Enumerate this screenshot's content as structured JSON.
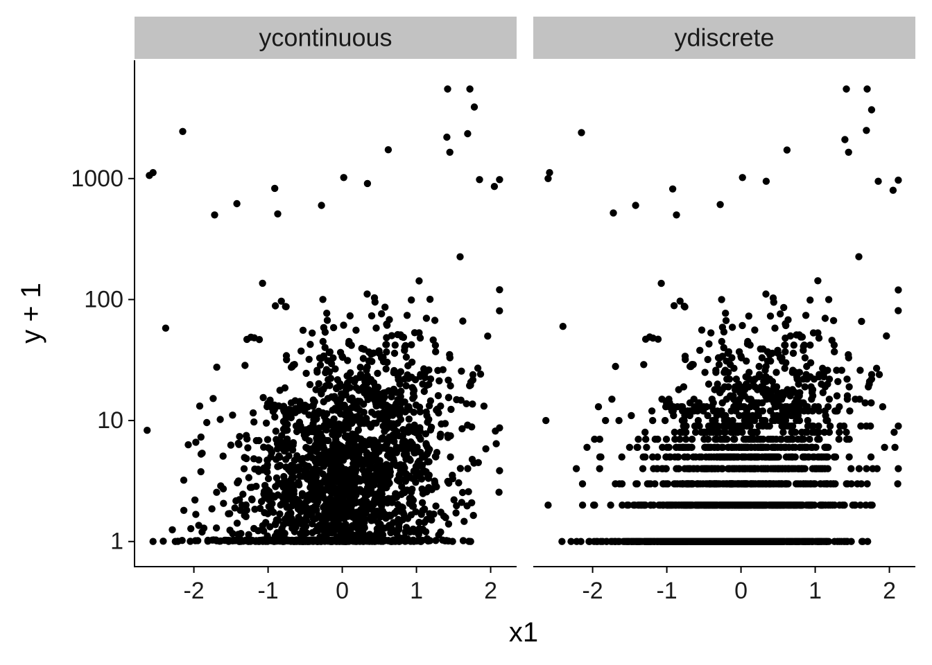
{
  "chart_data": {
    "type": "scatter",
    "facets": [
      "ycontinuous",
      "ydiscrete"
    ],
    "xlabel": "x1",
    "ylabel": "y + 1",
    "y_scale": "log10",
    "xlim": [
      -2.8,
      2.35
    ],
    "ylim": [
      0.62,
      9500
    ],
    "x_ticks": [
      -2,
      -1,
      0,
      1,
      2
    ],
    "x_tick_labels": [
      "-2",
      "-1",
      "0",
      "1",
      "2"
    ],
    "y_ticks": [
      1,
      10,
      100,
      1000
    ],
    "y_tick_labels": [
      "1",
      "10",
      "100",
      "1000"
    ],
    "grid": false,
    "point_color": "#000000",
    "strip_color": "#c2c2c2",
    "n_points_per_facet": 2200,
    "series": [
      {
        "facet": "ycontinuous",
        "notable_points": [
          [
            1.42,
            5500
          ],
          [
            1.72,
            5500
          ],
          [
            1.78,
            3900
          ],
          [
            1.41,
            2200
          ],
          [
            1.69,
            2350
          ],
          [
            -2.15,
            2450
          ],
          [
            -2.55,
            1120
          ],
          [
            -2.6,
            1060
          ],
          [
            0.62,
            1730
          ],
          [
            1.45,
            1650
          ],
          [
            0.02,
            1020
          ],
          [
            0.34,
            910
          ],
          [
            -0.91,
            830
          ],
          [
            1.85,
            980
          ],
          [
            2.05,
            860
          ],
          [
            2.12,
            980
          ],
          [
            -1.42,
            620
          ],
          [
            -0.87,
            510
          ],
          [
            -1.72,
            500
          ],
          [
            -0.28,
            600
          ],
          [
            -2.38,
            58
          ],
          [
            -2.63,
            8.3
          ],
          [
            -2.55,
            1.0
          ],
          [
            -2.25,
            1.0
          ],
          [
            1.73,
            1.0
          ]
        ]
      },
      {
        "facet": "ydiscrete",
        "notable_points": [
          [
            1.42,
            5500
          ],
          [
            1.7,
            5500
          ],
          [
            1.76,
            3700
          ],
          [
            1.69,
            2500
          ],
          [
            1.4,
            2100
          ],
          [
            -2.15,
            2400
          ],
          [
            -2.58,
            1120
          ],
          [
            -2.6,
            1000
          ],
          [
            0.62,
            1720
          ],
          [
            1.45,
            1650
          ],
          [
            0.02,
            1020
          ],
          [
            0.34,
            950
          ],
          [
            -0.92,
            820
          ],
          [
            1.85,
            950
          ],
          [
            2.05,
            800
          ],
          [
            2.12,
            970
          ],
          [
            -1.42,
            600
          ],
          [
            -0.87,
            500
          ],
          [
            -1.72,
            520
          ],
          [
            -0.28,
            610
          ],
          [
            -2.4,
            60
          ],
          [
            -2.63,
            10
          ],
          [
            -2.6,
            2
          ],
          [
            -2.22,
            4
          ],
          [
            -1.98,
            2
          ]
        ],
        "discrete_levels": [
          1,
          2,
          3,
          4,
          5,
          6,
          7,
          8
        ]
      }
    ]
  }
}
